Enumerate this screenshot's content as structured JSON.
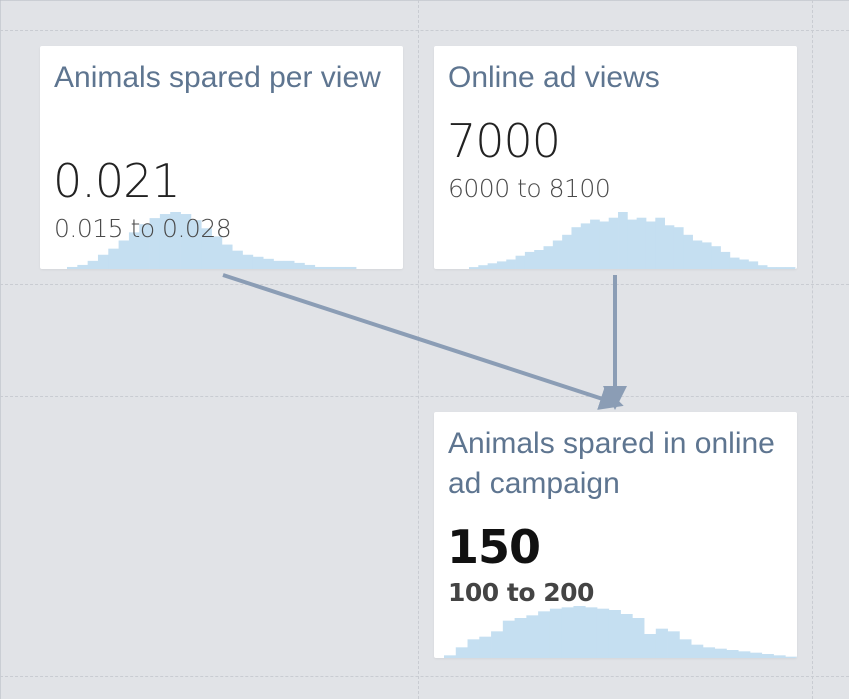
{
  "nodes": {
    "animals_per_view": {
      "title": "Animals spared per view",
      "value": "0.021",
      "range": "0.015 to 0.028",
      "distribution": [
        1,
        2,
        4,
        7,
        10,
        14,
        18,
        22,
        25,
        27,
        28,
        27,
        24,
        20,
        16,
        12,
        9,
        7,
        6,
        5,
        4,
        4,
        3,
        2,
        1,
        1,
        1,
        1
      ]
    },
    "online_ad_views": {
      "title": "Online ad views",
      "value": "7000",
      "range": "6000 to 8100",
      "distribution": [
        1,
        2,
        3,
        4,
        5,
        7,
        9,
        10,
        12,
        15,
        18,
        22,
        24,
        26,
        25,
        27,
        30,
        26,
        27,
        25,
        27,
        23,
        22,
        18,
        15,
        14,
        12,
        9,
        6,
        5,
        4,
        2,
        1,
        1,
        1
      ]
    },
    "animals_spared_campaign": {
      "title": "Animals spared in online ad campaign",
      "value": "150",
      "range": "100 to 200",
      "distribution": [
        2,
        8,
        14,
        16,
        20,
        28,
        30,
        32,
        35,
        37,
        38,
        39,
        38,
        37,
        36,
        33,
        30,
        18,
        22,
        20,
        14,
        10,
        8,
        7,
        6,
        5,
        4,
        3,
        2,
        1
      ]
    }
  },
  "colors": {
    "histogram": "#c5dff1",
    "arrow": "#8b9db5",
    "title": "#5e7590"
  }
}
